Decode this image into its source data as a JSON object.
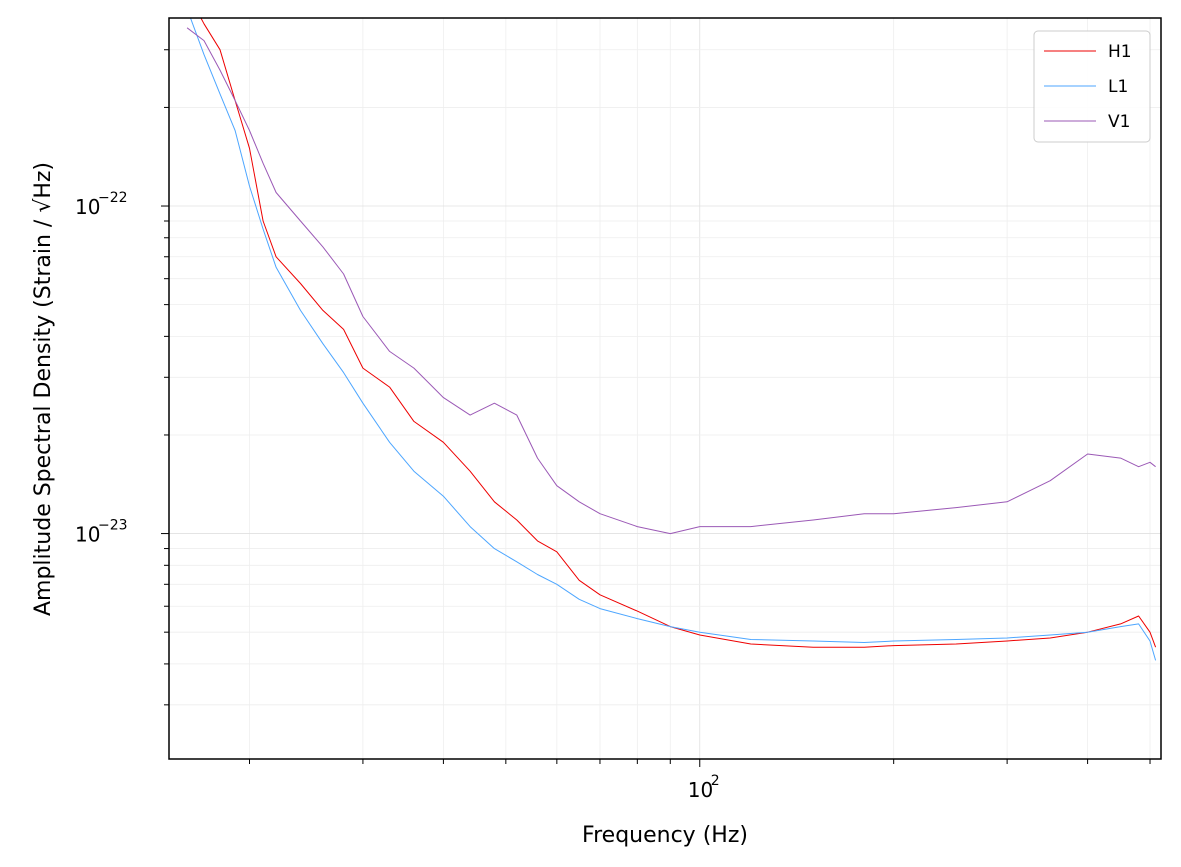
{
  "chart_data": {
    "type": "line",
    "title": "",
    "xlabel": "Frequency (Hz)",
    "ylabel": "Amplitude Spectral Density (Strain / √Hz)",
    "x_scale": "log",
    "y_scale": "log",
    "xlim": [
      15,
      520
    ],
    "ylim": [
      2.05e-24,
      3.75e-22
    ],
    "grid": true,
    "legend_position": "top-right",
    "x_major_ticks": [
      {
        "value": 100,
        "label": "10",
        "exponent": "2"
      }
    ],
    "y_major_ticks": [
      {
        "value": 1e-22,
        "label": "10",
        "exponent": "−22"
      },
      {
        "value": 1e-23,
        "label": "10",
        "exponent": "−23"
      }
    ],
    "series": [
      {
        "name": "H1",
        "color": "#ee0000",
        "x": [
          16,
          17,
          18,
          19,
          20,
          21,
          22,
          24,
          26,
          28,
          30,
          33,
          36,
          40,
          44,
          48,
          52,
          56,
          60,
          65,
          70,
          80,
          90,
          100,
          120,
          150,
          180,
          200,
          250,
          300,
          350,
          400,
          450,
          480,
          500,
          510
        ],
        "values": [
          4.5e-22,
          3.6e-22,
          3e-22,
          2.1e-22,
          1.5e-22,
          9e-23,
          7e-23,
          5.8e-23,
          4.8e-23,
          4.2e-23,
          3.2e-23,
          2.8e-23,
          2.2e-23,
          1.9e-23,
          1.55e-23,
          1.25e-23,
          1.1e-23,
          9.5e-24,
          8.8e-24,
          7.2e-24,
          6.5e-24,
          5.8e-24,
          5.2e-24,
          4.9e-24,
          4.6e-24,
          4.5e-24,
          4.5e-24,
          4.55e-24,
          4.6e-24,
          4.7e-24,
          4.8e-24,
          5e-24,
          5.3e-24,
          5.6e-24,
          5e-24,
          4.5e-24
        ]
      },
      {
        "name": "L1",
        "color": "#4da6ff",
        "x": [
          16,
          17,
          18,
          19,
          20,
          21,
          22,
          24,
          26,
          28,
          30,
          33,
          36,
          40,
          44,
          48,
          52,
          56,
          60,
          65,
          70,
          80,
          90,
          100,
          120,
          150,
          180,
          200,
          250,
          300,
          350,
          400,
          450,
          480,
          500,
          510
        ],
        "values": [
          4e-22,
          2.9e-22,
          2.2e-22,
          1.7e-22,
          1.15e-22,
          8.5e-23,
          6.5e-23,
          4.8e-23,
          3.8e-23,
          3.1e-23,
          2.5e-23,
          1.9e-23,
          1.55e-23,
          1.3e-23,
          1.05e-23,
          9e-24,
          8.2e-24,
          7.5e-24,
          7e-24,
          6.3e-24,
          5.9e-24,
          5.5e-24,
          5.2e-24,
          5e-24,
          4.75e-24,
          4.7e-24,
          4.65e-24,
          4.7e-24,
          4.75e-24,
          4.8e-24,
          4.9e-24,
          5e-24,
          5.2e-24,
          5.3e-24,
          4.7e-24,
          4.1e-24
        ]
      },
      {
        "name": "V1",
        "color": "#9b59b6",
        "x": [
          16,
          17,
          18,
          19,
          20,
          21,
          22,
          24,
          26,
          28,
          30,
          33,
          36,
          40,
          44,
          48,
          52,
          56,
          60,
          65,
          70,
          80,
          90,
          100,
          120,
          150,
          180,
          200,
          250,
          300,
          350,
          400,
          450,
          480,
          500,
          510
        ],
        "values": [
          3.5e-22,
          3.2e-22,
          2.6e-22,
          2.1e-22,
          1.7e-22,
          1.35e-22,
          1.1e-22,
          9e-23,
          7.5e-23,
          6.2e-23,
          4.6e-23,
          3.6e-23,
          3.2e-23,
          2.6e-23,
          2.3e-23,
          2.5e-23,
          2.3e-23,
          1.7e-23,
          1.4e-23,
          1.25e-23,
          1.15e-23,
          1.05e-23,
          1e-23,
          1.05e-23,
          1.05e-23,
          1.1e-23,
          1.15e-23,
          1.15e-23,
          1.2e-23,
          1.25e-23,
          1.45e-23,
          1.75e-23,
          1.7e-23,
          1.6e-23,
          1.65e-23,
          1.6e-23
        ]
      }
    ]
  }
}
